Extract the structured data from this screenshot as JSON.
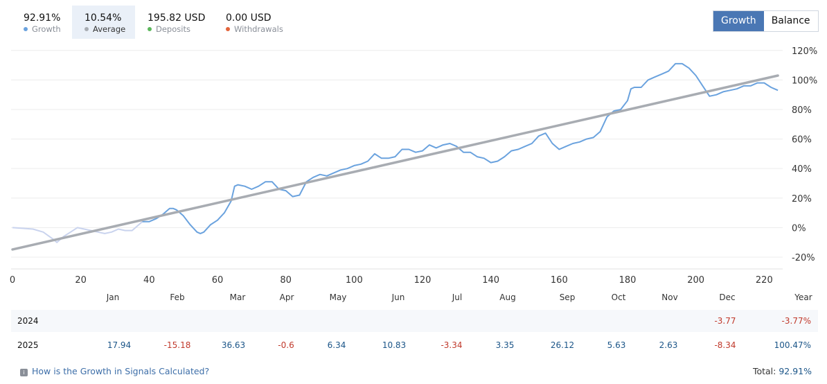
{
  "stats": [
    {
      "value": "92.91%",
      "label": "Growth",
      "color": "#6aa2de"
    },
    {
      "value": "10.54%",
      "label": "Average",
      "color": "#a8acb2"
    },
    {
      "value": "195.82 USD",
      "label": "Deposits",
      "color": "#5cb85c"
    },
    {
      "value": "0.00 USD",
      "label": "Withdrawals",
      "color": "#e3643b"
    }
  ],
  "toggle": {
    "growth_label": "Growth",
    "balance_label": "Balance"
  },
  "chart_data": {
    "type": "line",
    "x_ticks": [
      0,
      20,
      40,
      60,
      80,
      100,
      120,
      140,
      160,
      180,
      200,
      220
    ],
    "y_ticks": [
      -20,
      0,
      20,
      40,
      60,
      80,
      100,
      120
    ],
    "y_tick_labels": [
      "-20%",
      "0%",
      "20%",
      "40%",
      "60%",
      "80%",
      "100%",
      "120%"
    ],
    "xlim": [
      0,
      225
    ],
    "ylim": [
      -28,
      126
    ],
    "series": [
      {
        "name": "Growth",
        "color": "#6aa2de",
        "faded_color": "#c9d3ee",
        "faded_until_x": 38,
        "x": [
          0,
          3,
          6,
          9,
          12,
          13,
          15,
          17,
          19,
          21,
          23,
          25,
          27,
          29,
          31,
          33,
          35,
          37,
          38,
          40,
          42,
          44,
          46,
          47,
          48,
          50,
          52,
          54,
          55,
          56,
          58,
          60,
          62,
          64,
          65,
          66,
          68,
          70,
          72,
          74,
          76,
          78,
          80,
          82,
          84,
          86,
          88,
          90,
          92,
          94,
          96,
          98,
          100,
          102,
          104,
          106,
          108,
          110,
          112,
          114,
          116,
          118,
          120,
          122,
          124,
          126,
          128,
          130,
          132,
          134,
          136,
          138,
          140,
          142,
          144,
          146,
          148,
          150,
          152,
          154,
          156,
          158,
          160,
          162,
          164,
          166,
          168,
          170,
          172,
          174,
          176,
          178,
          180,
          181,
          182,
          184,
          186,
          188,
          190,
          192,
          194,
          196,
          198,
          200,
          202,
          204,
          206,
          208,
          210,
          212,
          214,
          216,
          218,
          220,
          222,
          224
        ],
        "y": [
          0,
          -0.5,
          -1,
          -3,
          -8,
          -10,
          -6,
          -3,
          0,
          -1,
          -2,
          -3,
          -4,
          -3,
          -1,
          -2,
          -2,
          2,
          4,
          4,
          6,
          9,
          13,
          13,
          12,
          8,
          2,
          -3,
          -4,
          -3,
          2,
          5,
          10,
          18,
          28,
          29,
          28,
          26,
          28,
          31,
          31,
          26,
          25,
          21,
          22,
          31,
          34,
          36,
          35,
          37,
          39,
          40,
          42,
          43,
          45,
          50,
          47,
          47,
          48,
          53,
          53,
          51,
          52,
          56,
          54,
          56,
          57,
          55,
          51,
          51,
          48,
          47,
          44,
          45,
          48,
          52,
          53,
          55,
          57,
          62,
          64,
          57,
          53,
          55,
          57,
          58,
          60,
          61,
          65,
          75,
          79,
          80,
          86,
          94,
          95,
          95,
          100,
          102,
          104,
          106,
          111,
          111,
          108,
          103,
          96,
          89,
          90,
          92,
          93,
          94,
          96,
          96,
          98,
          98,
          95,
          93
        ]
      },
      {
        "name": "Average",
        "color": "#a8acb2",
        "x": [
          0,
          224
        ],
        "y": [
          -14.8,
          103
        ]
      }
    ]
  },
  "months": [
    "Jan",
    "Feb",
    "Mar",
    "Apr",
    "May",
    "Jun",
    "Jul",
    "Aug",
    "Sep",
    "Oct",
    "Nov",
    "Dec",
    "Year"
  ],
  "table": {
    "rows": [
      {
        "year": "2024",
        "cells": [
          "",
          "",
          "",
          "",
          "",
          "",
          "",
          "",
          "",
          "",
          "",
          "-3.77"
        ],
        "total": "-3.77%"
      },
      {
        "year": "2025",
        "cells": [
          "17.94",
          "-15.18",
          "36.63",
          "-0.6",
          "6.34",
          "10.83",
          "-3.34",
          "3.35",
          "26.12",
          "5.63",
          "2.63",
          "-8.34"
        ],
        "total": "100.47%"
      }
    ]
  },
  "footer": {
    "link_text": "How is the Growth in Signals Calculated?",
    "total_label": "Total:",
    "total_value": "92.91%"
  }
}
